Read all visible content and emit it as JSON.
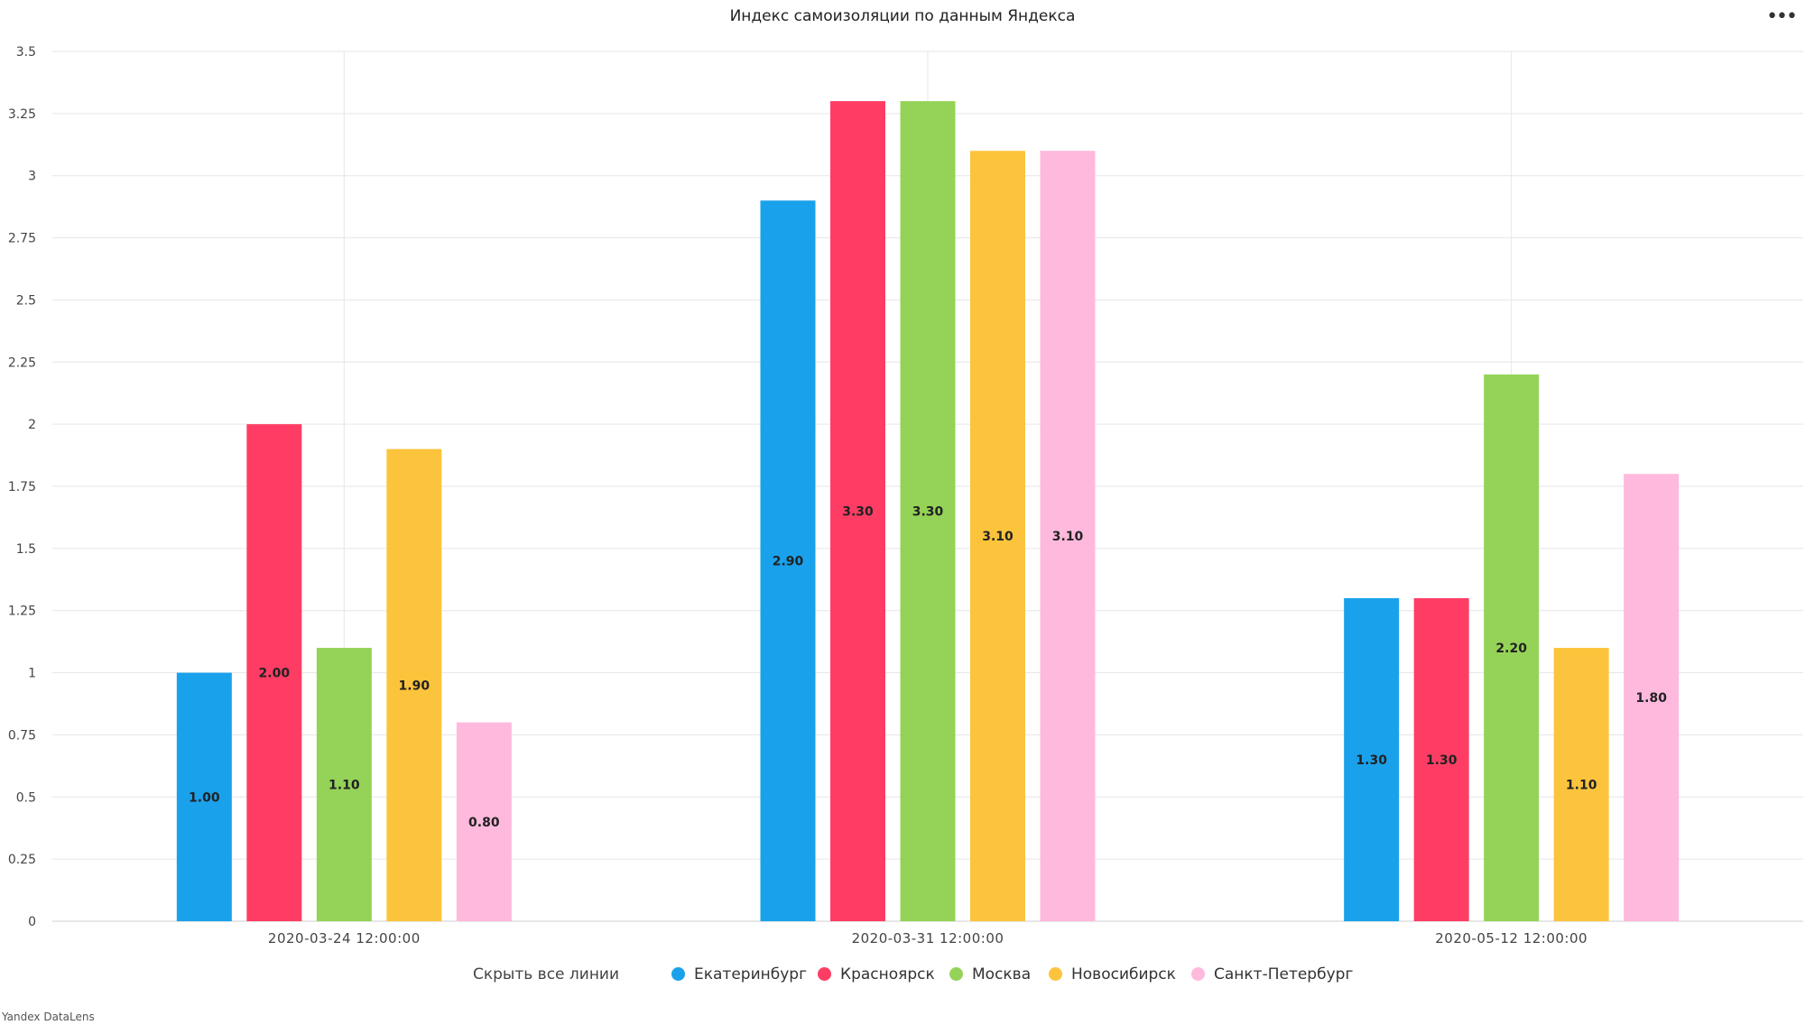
{
  "header": {
    "title": "Индекс самоизоляции по данным Яндекса",
    "menu_label": "•••"
  },
  "legend": {
    "hide_all_label": "Скрыть все линии"
  },
  "footer": {
    "credit": "Yandex DataLens"
  },
  "chart_data": {
    "type": "bar",
    "title": "Индекс самоизоляции по данным Яндекса",
    "xlabel": "",
    "ylabel": "",
    "categories": [
      "2020-03-24 12:00:00",
      "2020-03-31 12:00:00",
      "2020-05-12 12:00:00"
    ],
    "ylim": [
      0,
      3.5
    ],
    "yticks": [
      "0",
      "0.25",
      "0.5",
      "0.75",
      "1",
      "1.25",
      "1.5",
      "1.75",
      "2",
      "2.25",
      "2.5",
      "2.75",
      "3",
      "3.25",
      "3.5"
    ],
    "grid": true,
    "legend_position": "bottom",
    "series": [
      {
        "name": "Екатеринбург",
        "color": "#1aa1ec",
        "values": [
          1.0,
          2.9,
          1.3
        ],
        "labels": [
          "1.00",
          "2.90",
          "1.30"
        ]
      },
      {
        "name": "Красноярск",
        "color": "#ff3d64",
        "values": [
          2.0,
          3.3,
          1.3
        ],
        "labels": [
          "2.00",
          "3.30",
          "1.30"
        ]
      },
      {
        "name": "Москва",
        "color": "#95d358",
        "values": [
          1.1,
          3.3,
          2.2
        ],
        "labels": [
          "1.10",
          "3.30",
          "2.20"
        ]
      },
      {
        "name": "Новосибирск",
        "color": "#fcc43d",
        "values": [
          1.9,
          3.1,
          1.1
        ],
        "labels": [
          "1.90",
          "3.10",
          "1.10"
        ]
      },
      {
        "name": "Санкт-Петербург",
        "color": "#ffb9dd",
        "values": [
          0.8,
          3.1,
          1.8
        ],
        "labels": [
          "0.80",
          "3.10",
          "1.80"
        ]
      }
    ]
  }
}
